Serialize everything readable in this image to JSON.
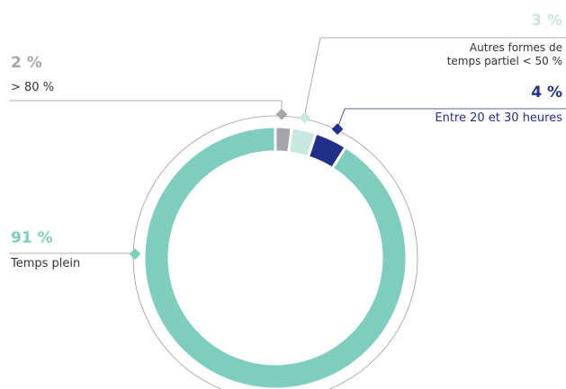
{
  "chart_data": {
    "type": "donut",
    "categories": [
      "> 80 %",
      "Autres formes de temps partiel < 50 %",
      "Entre 20 et 30 heures",
      "Temps plein"
    ],
    "values": [
      2,
      3,
      4,
      91
    ],
    "value_labels": [
      "2 %",
      "3 %",
      "4 %",
      "91 %"
    ],
    "colors": [
      "#a6a6a8",
      "#c6e8df",
      "#22308a",
      "#7ecdbf"
    ]
  }
}
